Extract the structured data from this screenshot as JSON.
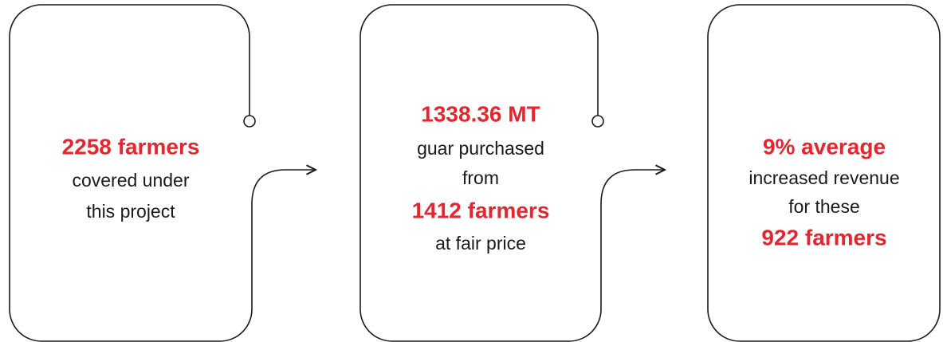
{
  "cards": [
    {
      "lines": [
        {
          "text": "2258 farmers",
          "color": "#e3262f"
        },
        {
          "text": "covered under",
          "color": "#1a1a1a"
        },
        {
          "text": "this project",
          "color": "#1a1a1a"
        }
      ]
    },
    {
      "lines": [
        {
          "text": "1338.36 MT",
          "color": "#e3262f"
        },
        {
          "text": "guar purchased",
          "color": "#1a1a1a"
        },
        {
          "text": "from",
          "color": "#1a1a1a"
        },
        {
          "text": "1412 farmers",
          "color": "#e3262f"
        },
        {
          "text": "at fair price",
          "color": "#1a1a1a"
        }
      ]
    },
    {
      "lines": [
        {
          "text": "9% average",
          "color": "#e3262f"
        },
        {
          "text": "increased revenue",
          "color": "#1a1a1a"
        },
        {
          "text": "for these",
          "color": "#1a1a1a"
        },
        {
          "text": "922 farmers",
          "color": "#e3262f"
        }
      ]
    }
  ]
}
